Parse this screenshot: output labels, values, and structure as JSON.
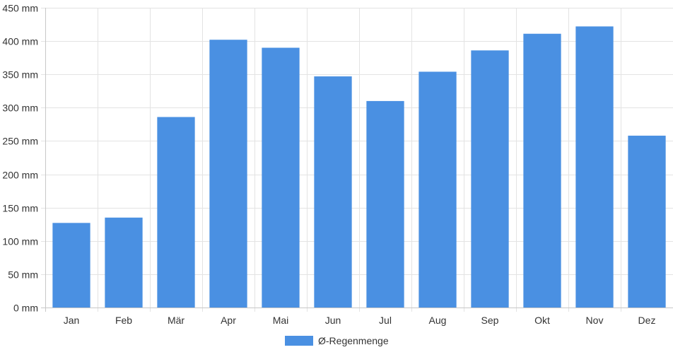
{
  "chart_data": {
    "type": "bar",
    "title": "",
    "xlabel": "",
    "ylabel": "",
    "categories": [
      "Jan",
      "Feb",
      "Mär",
      "Apr",
      "Mai",
      "Jun",
      "Jul",
      "Aug",
      "Sep",
      "Okt",
      "Nov",
      "Dez"
    ],
    "series": [
      {
        "name": "Ø-Regenmenge",
        "color": "#4a90e2",
        "values": [
          127,
          135,
          286,
          402,
          390,
          347,
          310,
          354,
          386,
          411,
          422,
          258
        ]
      }
    ],
    "ylim": [
      0,
      450
    ],
    "y_ticks": [
      0,
      50,
      100,
      150,
      200,
      250,
      300,
      350,
      400,
      450
    ],
    "y_tick_labels": [
      "0 mm",
      "50 mm",
      "100 mm",
      "150 mm",
      "200 mm",
      "250 mm",
      "300 mm",
      "350 mm",
      "400 mm",
      "450 mm"
    ],
    "grid": true,
    "legend_position": "bottom"
  }
}
